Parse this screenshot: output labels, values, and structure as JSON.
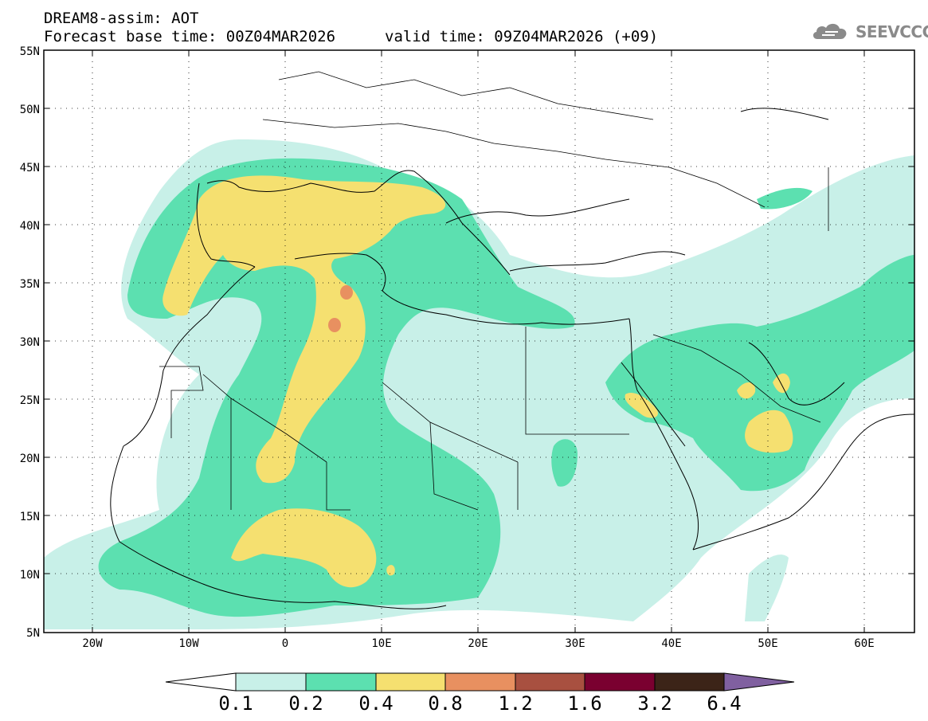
{
  "header": {
    "title": "DREAM8-assim: AOT",
    "base_time": "Forecast base time: 00Z04MAR2026",
    "valid_time": "valid time: 09Z04MAR2026 (+09)"
  },
  "logo": {
    "text": "SEEVCCC",
    "icon": "cloud-logo-icon",
    "color": "#8a8a8a"
  },
  "map": {
    "lon_range": [
      -25,
      65
    ],
    "lat_range": [
      5,
      55
    ],
    "lat_ticks": [
      "5N",
      "10N",
      "15N",
      "20N",
      "25N",
      "30N",
      "35N",
      "40N",
      "45N",
      "50N",
      "55N"
    ],
    "lon_ticks": [
      "20W",
      "10W",
      "0",
      "10E",
      "20E",
      "30E",
      "40E",
      "50E",
      "60E"
    ],
    "gridlines": "dotted"
  },
  "colorbar": {
    "levels": [
      "0.1",
      "0.2",
      "0.4",
      "0.8",
      "1.2",
      "1.6",
      "3.2",
      "6.4"
    ],
    "colors": [
      "#ffffff",
      "#c8f0e8",
      "#5ce0b0",
      "#f5e070",
      "#e89060",
      "#a85040",
      "#7a0030",
      "#3c2418",
      "#8060a0"
    ]
  }
}
